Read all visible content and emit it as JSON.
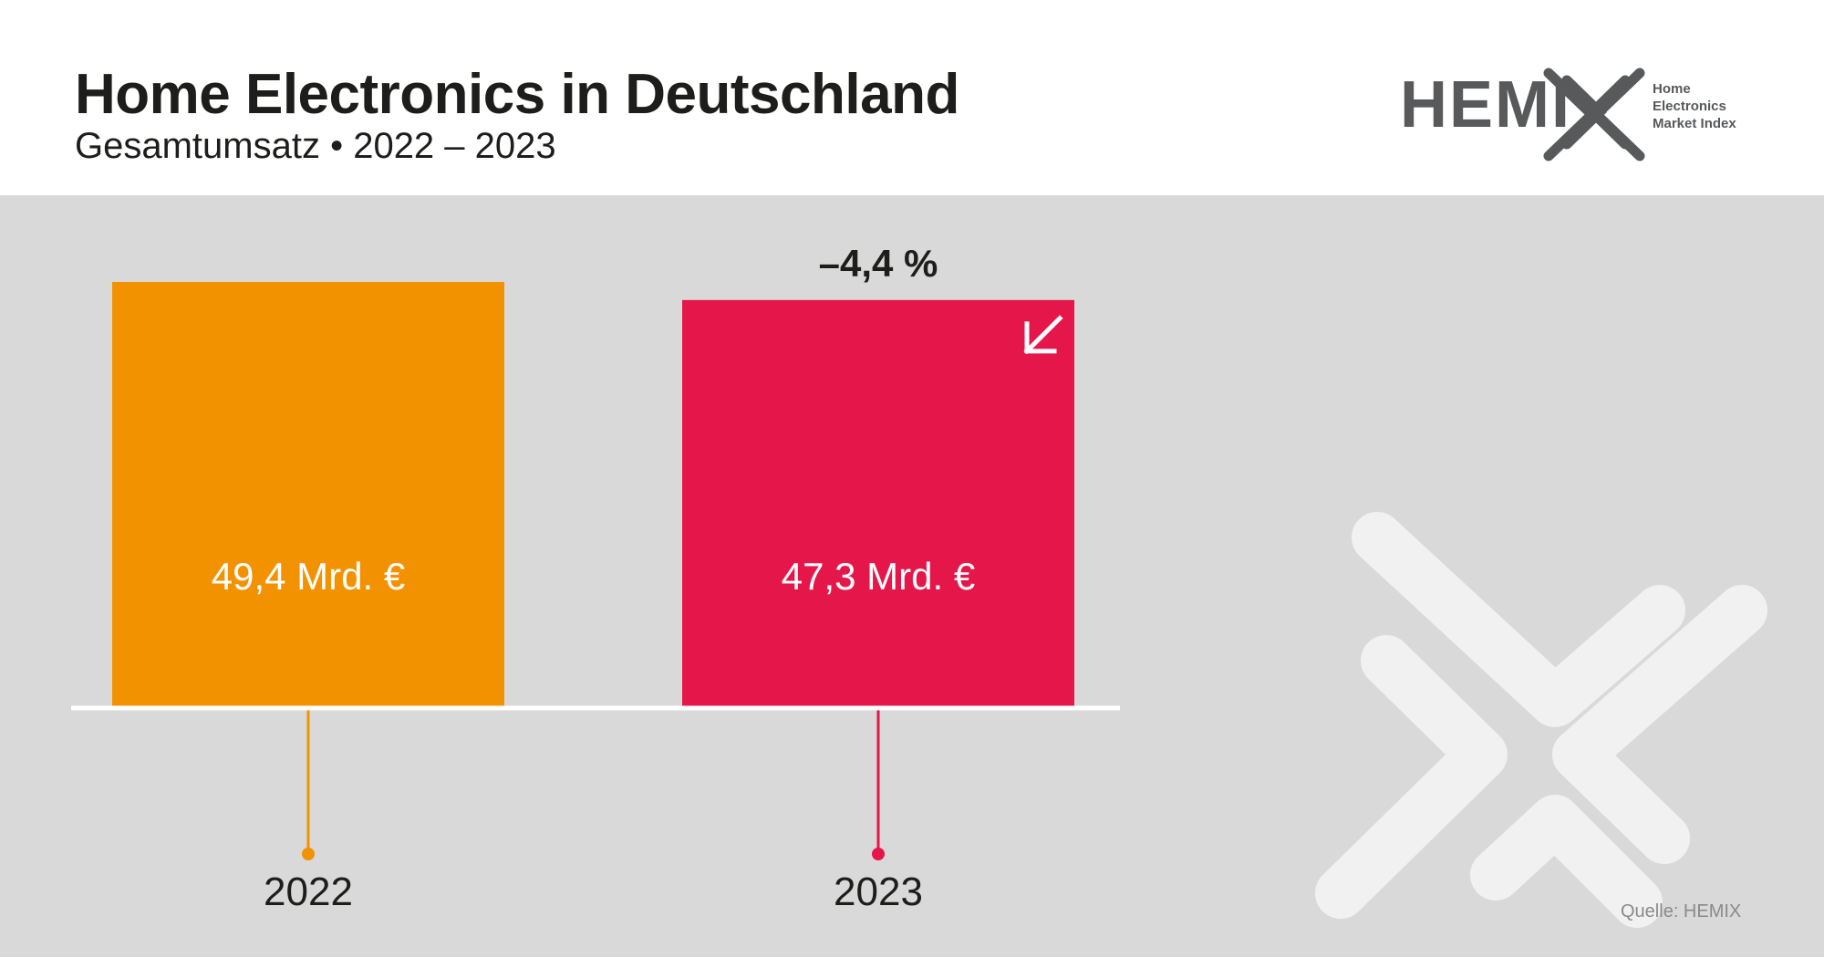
{
  "header": {
    "title": "Home Electronics in Deutschland",
    "subtitle": "Gesamtumsatz • 2022 – 2023"
  },
  "logo": {
    "word": "HEMI",
    "tagline": [
      "Home",
      "Electronics",
      "Market Index"
    ]
  },
  "source": "Quelle: HEMIX",
  "colors": {
    "bar_2022": "#f39200",
    "bar_2023": "#e5174a",
    "background": "#d9d9d9",
    "baseline": "#ffffff"
  },
  "icons": {
    "change_arrow": "arrow-down-left-icon",
    "watermark": "hemix-x-mark-icon"
  },
  "chart_data": {
    "type": "bar",
    "title": "Home Electronics in Deutschland",
    "subtitle": "Gesamtumsatz • 2022 – 2023",
    "xlabel": "",
    "ylabel": "",
    "unit": "Mrd. €",
    "categories": [
      "2022",
      "2023"
    ],
    "values": [
      49.4,
      47.3
    ],
    "data_labels": [
      "49,4 Mrd. €",
      "47,3 Mrd. €"
    ],
    "ylim": [
      0,
      49.4
    ],
    "grid": false,
    "legend": "none",
    "annotations": [
      {
        "category": "2023",
        "text": "–4,4 %"
      }
    ]
  }
}
